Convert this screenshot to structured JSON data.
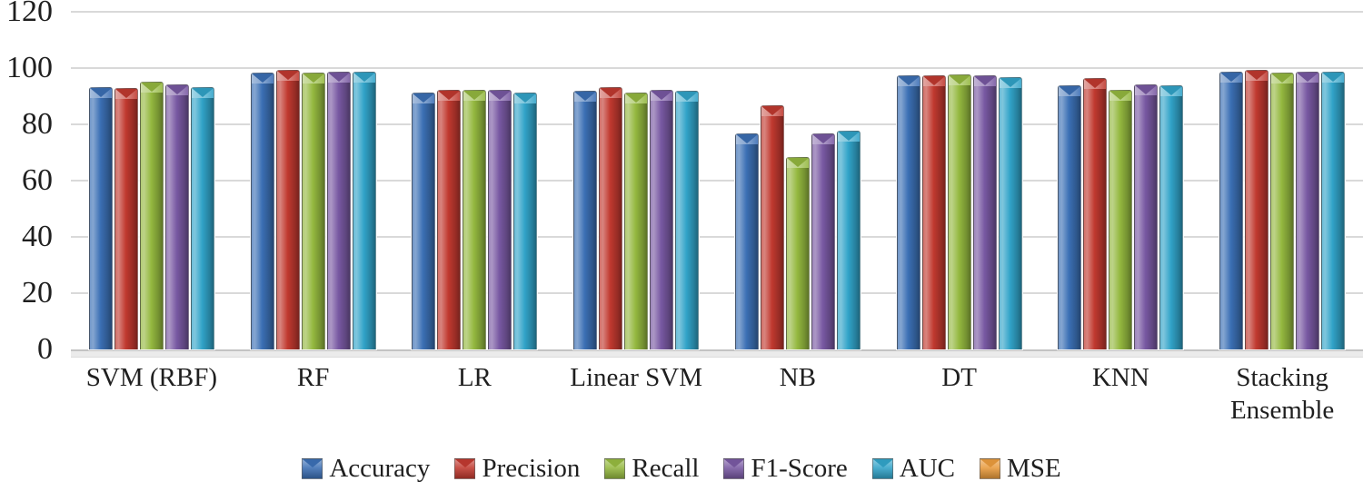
{
  "chart_data": {
    "type": "bar",
    "title": "",
    "xlabel": "",
    "ylabel": "",
    "categories": [
      "SVM (RBF)",
      "RF",
      "LR",
      "Linear SVM",
      "NB",
      "DT",
      "KNN",
      "Stacking Ensemble"
    ],
    "series": [
      {
        "name": "Accuracy",
        "color": "#3b6fb4",
        "values": [
          93,
          98,
          91,
          91.5,
          76.5,
          97,
          93.5,
          98.5
        ]
      },
      {
        "name": "Precision",
        "color": "#c0392f",
        "values": [
          92.5,
          99,
          92,
          93,
          86.5,
          97,
          96,
          99
        ]
      },
      {
        "name": "Recall",
        "color": "#94b83f",
        "values": [
          95,
          98,
          92,
          91,
          68,
          97.5,
          92,
          98
        ]
      },
      {
        "name": "F1-Score",
        "color": "#7858a2",
        "values": [
          94,
          98.5,
          92,
          92,
          76.5,
          97,
          94,
          98.5
        ]
      },
      {
        "name": "AUC",
        "color": "#31a3c8",
        "values": [
          93,
          98.5,
          91,
          91.5,
          77.5,
          96.5,
          93.5,
          98.5
        ]
      },
      {
        "name": "MSE",
        "color": "#e89a3c",
        "values": [
          0,
          0,
          0,
          0,
          0,
          0,
          0,
          0
        ]
      }
    ],
    "ylim": [
      0,
      120
    ],
    "yticks": [
      0,
      20,
      40,
      60,
      80,
      100,
      120
    ],
    "grid": true,
    "gridline_color": "#d9d9d9",
    "legend_position": "bottom"
  }
}
